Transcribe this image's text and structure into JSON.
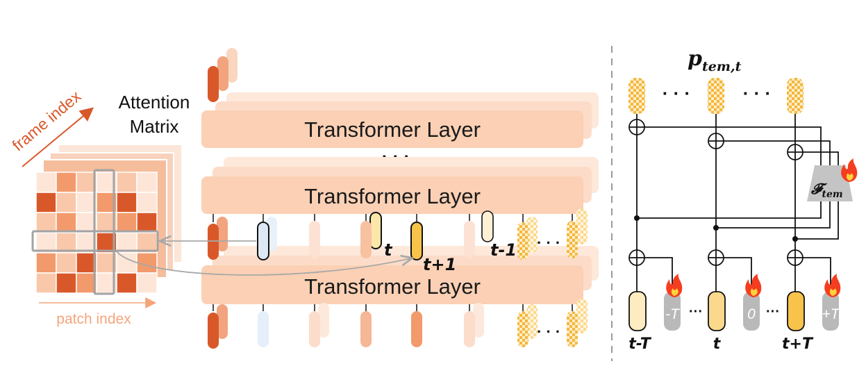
{
  "attention": {
    "title_line1": "Attention",
    "title_line2": "Matrix",
    "frame_axis_label": "frame index",
    "patch_axis_label": "patch index"
  },
  "transformer": {
    "layer_label": "Transformer Layer",
    "ellipsis": "· · ·"
  },
  "tokens": {
    "label_t": "t",
    "label_t_plus_1": "t+1",
    "label_t_minus_1": "t-1",
    "dots": "· · ·"
  },
  "temporal": {
    "p_main": "p",
    "p_sub": "tem,t",
    "dots": "· · ·",
    "f_main": "𝓕",
    "f_sub": "tem",
    "label_t_minus_T": "t-T",
    "label_t": "t",
    "label_t_plus_T": "t+T",
    "emb_minus_T": "-T",
    "emb_zero": "0",
    "emb_plus_T": "+T",
    "small_dots": "···"
  },
  "colors": {
    "dark_orange": "#d9582a",
    "mid_orange": "#f29a6c",
    "light_orange": "#f9d5bd",
    "peach_bar": "#fbd0b4",
    "yellow": "#f7c34b",
    "cream": "#fdecc0",
    "grey": "#b9b9b9",
    "light_blue": "#dce9f5"
  }
}
